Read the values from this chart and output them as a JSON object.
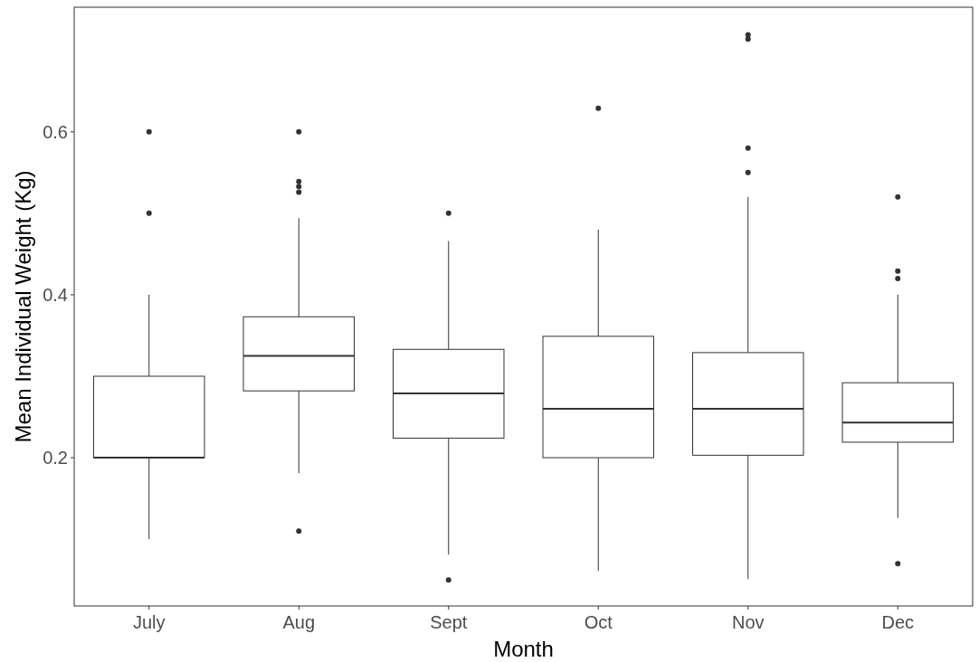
{
  "chart_data": {
    "type": "box",
    "xlabel": "Month",
    "ylabel": "Mean Individual Weight (Kg)",
    "categories": [
      "July",
      "Aug",
      "Sept",
      "Oct",
      "Nov",
      "Dec"
    ],
    "boxes": [
      {
        "low": 0.1,
        "q1": 0.2,
        "median": 0.2,
        "q3": 0.3,
        "high": 0.4,
        "outliers": [
          0.5,
          0.6
        ]
      },
      {
        "low": 0.181,
        "q1": 0.282,
        "median": 0.325,
        "q3": 0.373,
        "high": 0.494,
        "outliers": [
          0.11,
          0.526,
          0.533,
          0.539,
          0.6
        ]
      },
      {
        "low": 0.081,
        "q1": 0.224,
        "median": 0.279,
        "q3": 0.333,
        "high": 0.466,
        "outliers": [
          0.05,
          0.5
        ]
      },
      {
        "low": 0.061,
        "q1": 0.2,
        "median": 0.26,
        "q3": 0.349,
        "high": 0.48,
        "outliers": [
          0.629
        ]
      },
      {
        "low": 0.051,
        "q1": 0.203,
        "median": 0.26,
        "q3": 0.329,
        "high": 0.52,
        "outliers": [
          0.55,
          0.58,
          0.714,
          0.719
        ]
      },
      {
        "low": 0.126,
        "q1": 0.219,
        "median": 0.243,
        "q3": 0.292,
        "high": 0.4,
        "outliers": [
          0.07,
          0.42,
          0.429,
          0.52
        ]
      }
    ],
    "color": "#333333",
    "ylim": [
      0.018,
      0.753
    ],
    "yticks": [
      {
        "value": 0.2,
        "label": "0.2"
      },
      {
        "value": 0.4,
        "label": "0.4"
      },
      {
        "value": 0.6,
        "label": "0.6"
      }
    ],
    "grid": false
  }
}
